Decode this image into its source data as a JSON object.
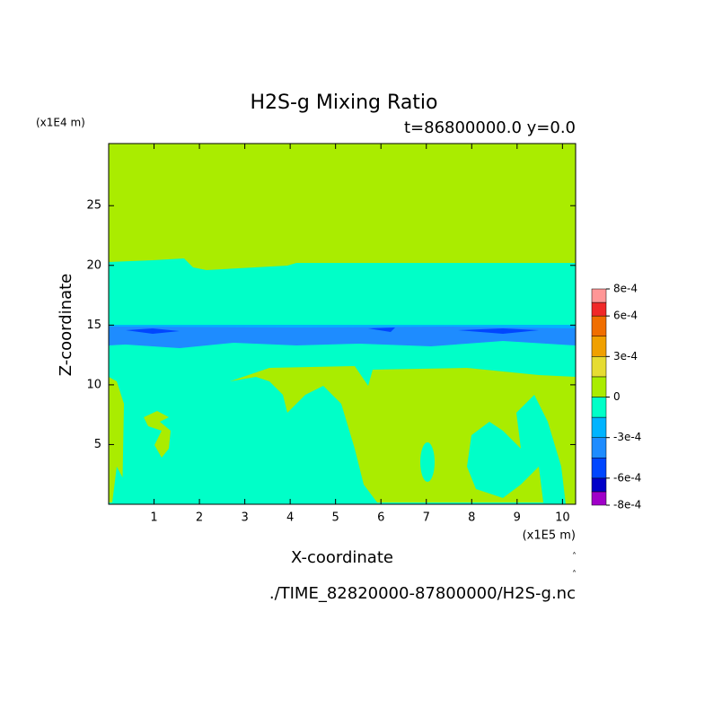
{
  "chart_data": {
    "type": "contour",
    "title": "H2S-g Mixing Ratio",
    "subtitle": "t=86800000.0 y=0.0",
    "x_label": "X-coordinate",
    "y_label": "Z-coordinate",
    "x_unit": "(x1E5 m)",
    "y_unit": "(x1E4 m)",
    "footer": "./TIME_82820000-87800000/H2S-g.nc",
    "xlim": [
      0,
      10.29
    ],
    "ylim": [
      0,
      30.2
    ],
    "xticks": [
      1,
      2,
      3,
      4,
      5,
      6,
      7,
      8,
      9,
      10
    ],
    "yticks": [
      5,
      10,
      15,
      20,
      25
    ],
    "colorbar": {
      "lim": [
        -0.0008,
        0.0008
      ],
      "ticks": [
        {
          "value": 0.0008,
          "label": "8e-4"
        },
        {
          "value": 0.0006,
          "label": "6e-4"
        },
        {
          "value": 0.0003,
          "label": "3e-4"
        },
        0,
        {
          "value": -0.0003,
          "label": "-3e-4"
        },
        {
          "value": -0.0006,
          "label": "-6e-4"
        },
        {
          "value": -0.0008,
          "label": "-8e-4"
        }
      ],
      "bins": [
        -0.0008,
        -0.0007,
        -0.0006,
        -0.00045,
        -0.0003,
        -0.00015,
        0,
        0.00015,
        0.0003,
        0.00045,
        0.0006,
        0.0007,
        0.0008
      ],
      "colors": [
        "#a000c8",
        "#0000c8",
        "#0046ff",
        "#1e8cff",
        "#00b4ff",
        "#00ffc8",
        "#aaec00",
        "#e6dc32",
        "#f0a000",
        "#f06e00",
        "#f02828",
        "#ff9696"
      ]
    }
  }
}
